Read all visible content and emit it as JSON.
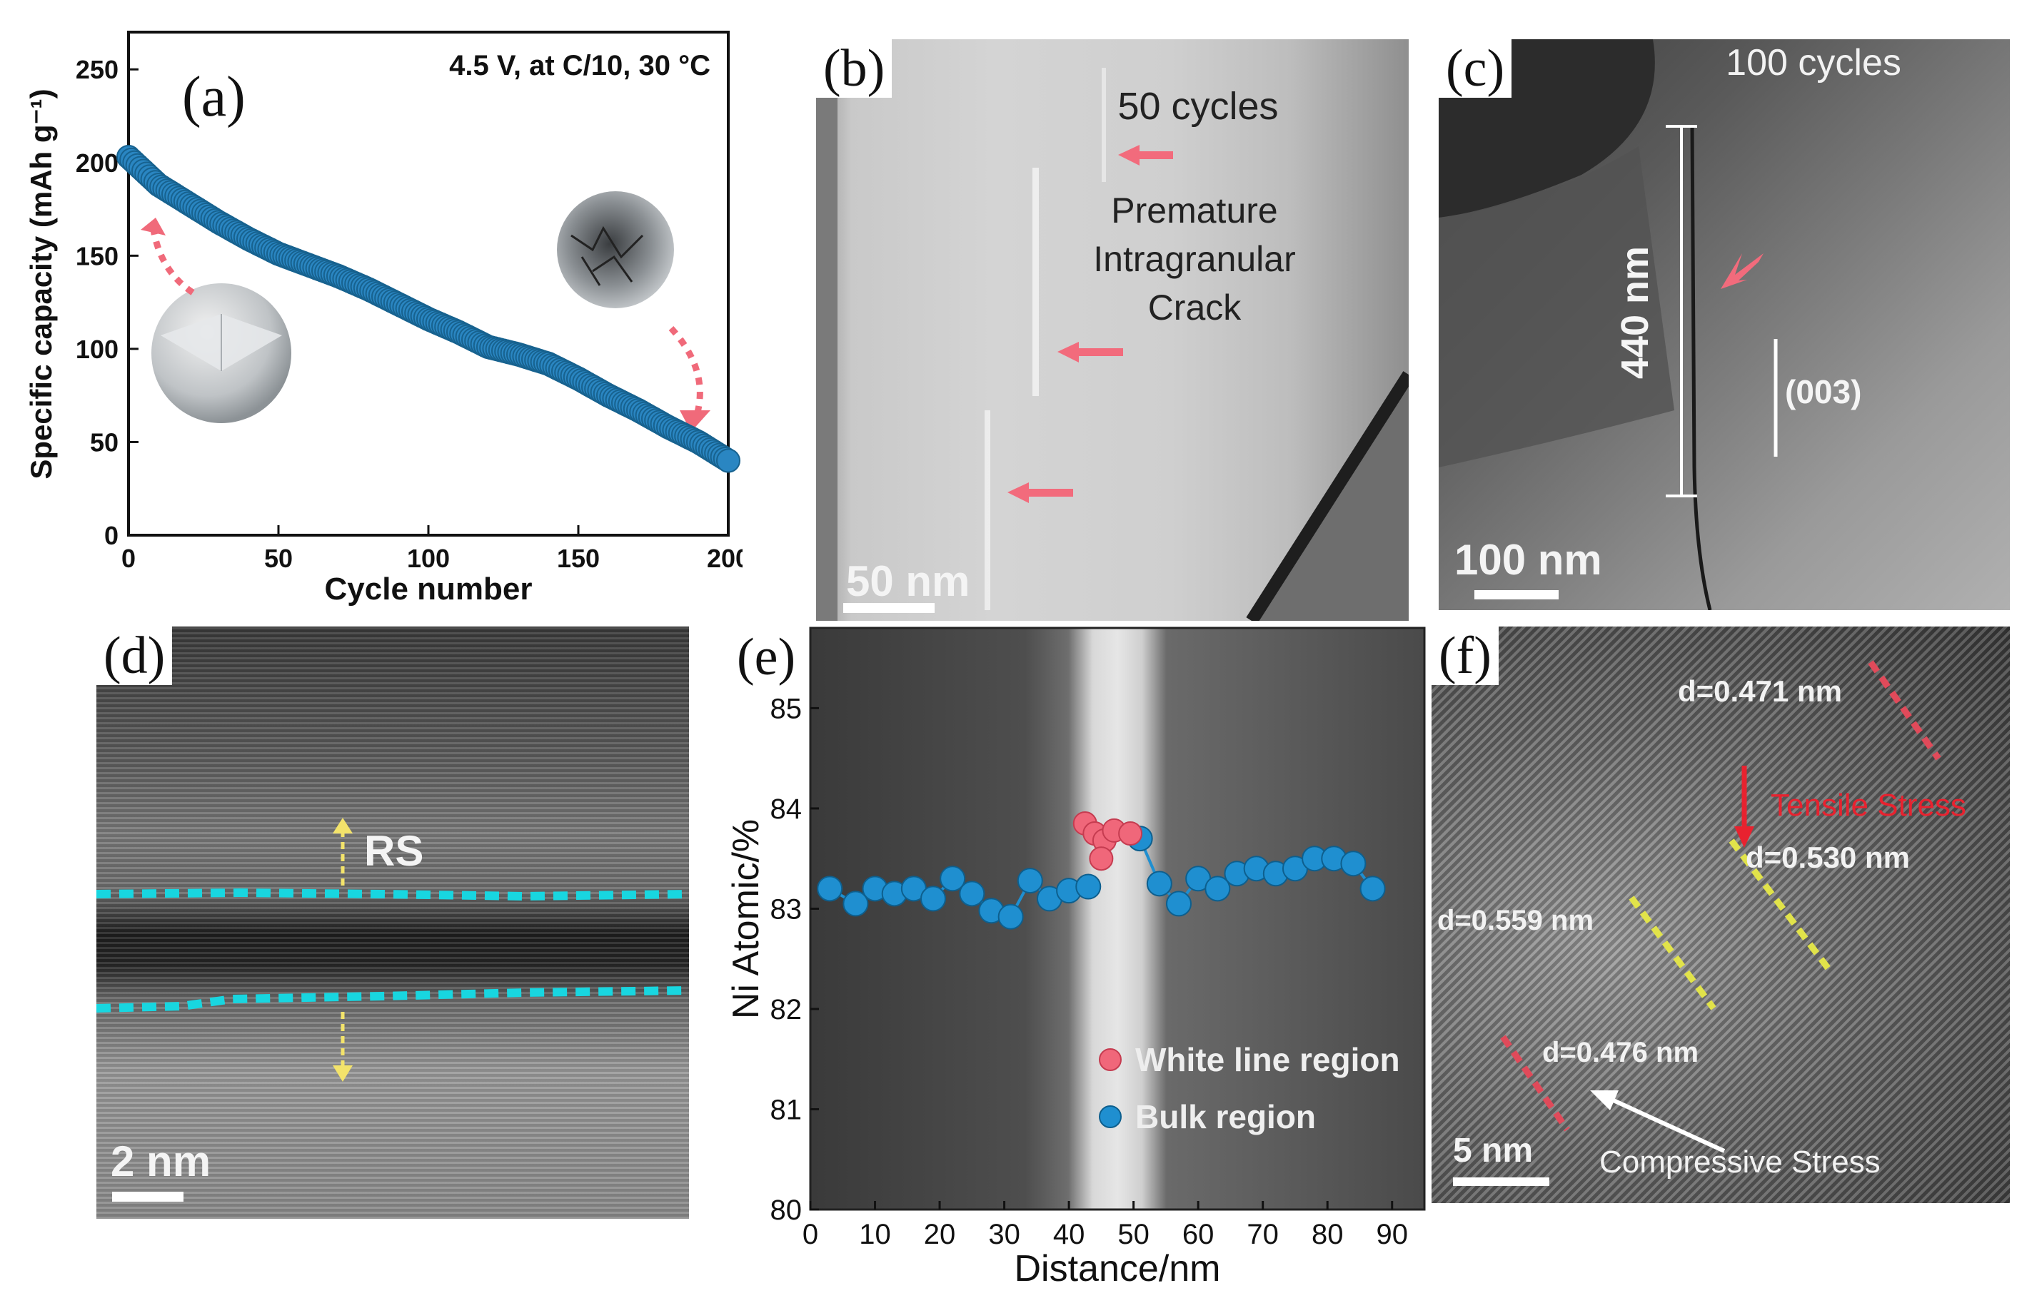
{
  "panels": {
    "a": {
      "label": "(a)",
      "condition": "4.5 V,   at C/10,  30 °C"
    },
    "b": {
      "label": "(b)",
      "cycles": "50 cycles",
      "annotation": [
        "Premature",
        "Intragranular",
        "Crack"
      ],
      "scale_bar": "50 nm"
    },
    "c": {
      "label": "(c)",
      "cycles": "100 cycles",
      "length": "440 nm",
      "plane": "(003)",
      "scale_bar": "100 nm"
    },
    "d": {
      "label": "(d)",
      "region": "RS",
      "scale_bar": "2 nm"
    },
    "e": {
      "label": "(e)"
    },
    "f": {
      "label": "(f)",
      "d1": "d=0.471 nm",
      "d2": "d=0.530 nm",
      "d3": "d=0.559 nm",
      "d4": "d=0.476 nm",
      "tensile": "Tensile Stress",
      "compressive": "Compressive Stress",
      "scale_bar": "5 nm"
    }
  },
  "chart_data": [
    {
      "panel": "a",
      "type": "scatter",
      "title": "",
      "xlabel": "Cycle number",
      "ylabel": "Specific capacity (mAh g⁻¹)",
      "xlim": [
        0,
        200
      ],
      "ylim": [
        0,
        270
      ],
      "xticks": [
        0,
        50,
        100,
        150,
        200
      ],
      "yticks": [
        0,
        50,
        100,
        150,
        200,
        250
      ],
      "series": [
        {
          "name": "capacity",
          "color": "#2a86c2",
          "x": [
            0,
            10,
            20,
            30,
            40,
            50,
            60,
            70,
            80,
            90,
            100,
            110,
            120,
            130,
            140,
            150,
            160,
            170,
            180,
            190,
            200
          ],
          "values": [
            203,
            188,
            178,
            168,
            159,
            151,
            145,
            139,
            132,
            124,
            116,
            109,
            101,
            97,
            92,
            84,
            75,
            67,
            58,
            50,
            40
          ]
        }
      ]
    },
    {
      "panel": "e",
      "type": "scatter",
      "xlabel": "Distance/nm",
      "ylabel": "Ni Atomic/%",
      "xlim": [
        0,
        95
      ],
      "ylim": [
        80,
        85.8
      ],
      "xticks": [
        0,
        10,
        20,
        30,
        40,
        50,
        60,
        70,
        80,
        90
      ],
      "yticks": [
        80,
        81,
        82,
        83,
        84,
        85
      ],
      "legend": [
        "White line region",
        "Bulk region"
      ],
      "series": [
        {
          "name": "Bulk region",
          "color": "#1f8fd0",
          "x": [
            3,
            7,
            10,
            13,
            16,
            19,
            22,
            25,
            28,
            31,
            34,
            37,
            40,
            43,
            51,
            54,
            57,
            60,
            63,
            66,
            69,
            72,
            75,
            78,
            81,
            84,
            87
          ],
          "values": [
            83.2,
            83.05,
            83.2,
            83.15,
            83.2,
            83.1,
            83.3,
            83.15,
            82.98,
            82.92,
            83.28,
            83.1,
            83.18,
            83.22,
            83.7,
            83.25,
            83.05,
            83.3,
            83.2,
            83.35,
            83.4,
            83.35,
            83.4,
            83.5,
            83.5,
            83.45,
            83.2
          ]
        },
        {
          "name": "White line region",
          "color": "#f0677a",
          "x": [
            42.5,
            44,
            45.5,
            47,
            49.5,
            45
          ],
          "values": [
            83.85,
            83.75,
            83.68,
            83.78,
            83.75,
            83.5
          ]
        }
      ]
    }
  ]
}
